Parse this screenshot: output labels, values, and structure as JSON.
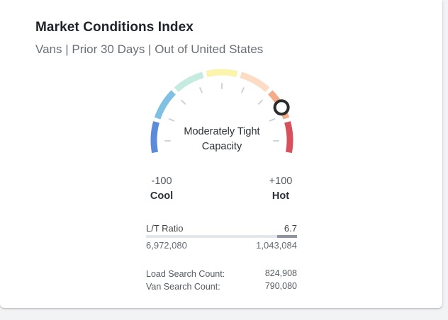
{
  "widget": {
    "title": "Market Conditions Index",
    "subtitle": "Vans | Prior 30 Days | Out of United States"
  },
  "gauge": {
    "status_label": "Moderately Tight Capacity",
    "min_value": "-100",
    "min_label": "Cool",
    "max_value": "+100",
    "max_label": "Hot",
    "indicator_fraction": 0.8,
    "segment_colors": [
      "#5b8bd9",
      "#7fc0e3",
      "#c5ebe0",
      "#faf4ad",
      "#fcdcc4",
      "#f4ac88",
      "#d9505d"
    ],
    "tick_color": "#cfd3d8",
    "indicator_border_color": "#2b2b2b"
  },
  "ratio": {
    "label": "L/T Ratio",
    "value": "6.7",
    "loads": "6,972,080",
    "trucks": "1,043,084",
    "bar_fraction": 0.13,
    "track_color": "#e3e6ea",
    "fill_color": "#8f959c"
  },
  "counts": [
    {
      "label": "Load Search Count:",
      "value": "824,908"
    },
    {
      "label": "Van Search Count:",
      "value": "790,080"
    }
  ]
}
